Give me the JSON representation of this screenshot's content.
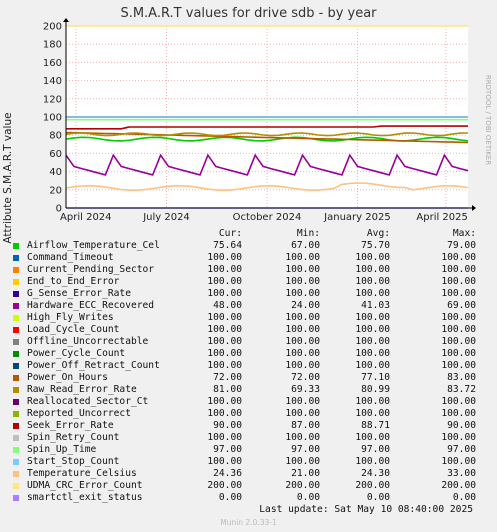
{
  "title": "S.M.A.R.T values for drive sdb - by year",
  "side_label": "RRDTOOL / TOBI OETIKER",
  "ylabel": "Attribute S.M.A.R.T value",
  "columns": {
    "cur": "Cur:",
    "min": "Min:",
    "avg": "Avg:",
    "max": "Max:"
  },
  "last_update": "Last update:  Sat May 10 08:40:00 2025",
  "footer": "Munin 2.0.33-1",
  "chart_data": {
    "type": "line",
    "title": "S.M.A.R.T values for drive sdb - by year",
    "ylabel": "Attribute S.M.A.R.T value",
    "xlabel": "",
    "ylim": [
      0,
      200
    ],
    "yticks": [
      0,
      20,
      40,
      60,
      80,
      100,
      120,
      140,
      160,
      180,
      200
    ],
    "xticks": [
      "April 2024",
      "July 2024",
      "October 2024",
      "January 2025",
      "April 2025"
    ],
    "grid": true,
    "series": [
      {
        "name": "Airflow_Temperature_Cel",
        "color": "#00cc00",
        "cur": "75.64",
        "min": "67.00",
        "avg": "75.70",
        "max": "79.00",
        "level": 75.7
      },
      {
        "name": "Command_Timeout",
        "color": "#0066b3",
        "cur": "100.00",
        "min": "100.00",
        "avg": "100.00",
        "max": "100.00",
        "level": 100
      },
      {
        "name": "Current_Pending_Sector",
        "color": "#ff8000",
        "cur": "100.00",
        "min": "100.00",
        "avg": "100.00",
        "max": "100.00",
        "level": 100
      },
      {
        "name": "End_to_End_Error",
        "color": "#ffcc00",
        "cur": "100.00",
        "min": "100.00",
        "avg": "100.00",
        "max": "100.00",
        "level": 100
      },
      {
        "name": "G_Sense_Error_Rate",
        "color": "#330099",
        "cur": "100.00",
        "min": "100.00",
        "avg": "100.00",
        "max": "100.00",
        "level": 100
      },
      {
        "name": "Hardware_ECC_Recovered",
        "color": "#990099",
        "cur": "48.00",
        "min": "24.00",
        "avg": "41.03",
        "max": "69.00",
        "level": 41.03
      },
      {
        "name": "High_Fly_Writes",
        "color": "#ccff00",
        "cur": "100.00",
        "min": "100.00",
        "avg": "100.00",
        "max": "100.00",
        "level": 100
      },
      {
        "name": "Load_Cycle_Count",
        "color": "#ff0000",
        "cur": "100.00",
        "min": "100.00",
        "avg": "100.00",
        "max": "100.00",
        "level": 100
      },
      {
        "name": "Offline_Uncorrectable",
        "color": "#808080",
        "cur": "100.00",
        "min": "100.00",
        "avg": "100.00",
        "max": "100.00",
        "level": 100
      },
      {
        "name": "Power_Cycle_Count",
        "color": "#008f00",
        "cur": "100.00",
        "min": "100.00",
        "avg": "100.00",
        "max": "100.00",
        "level": 100
      },
      {
        "name": "Power_Off_Retract_Count",
        "color": "#00487d",
        "cur": "100.00",
        "min": "100.00",
        "avg": "100.00",
        "max": "100.00",
        "level": 100
      },
      {
        "name": "Power_On_Hours",
        "color": "#b35a00",
        "cur": "72.00",
        "min": "72.00",
        "avg": "77.10",
        "max": "83.00",
        "level": 77.1
      },
      {
        "name": "Raw_Read_Error_Rate",
        "color": "#b38f00",
        "cur": "81.00",
        "min": "69.33",
        "avg": "80.99",
        "max": "83.72",
        "level": 80.99
      },
      {
        "name": "Reallocated_Sector_Ct",
        "color": "#6b006b",
        "cur": "100.00",
        "min": "100.00",
        "avg": "100.00",
        "max": "100.00",
        "level": 100
      },
      {
        "name": "Reported_Uncorrect",
        "color": "#8fb300",
        "cur": "100.00",
        "min": "100.00",
        "avg": "100.00",
        "max": "100.00",
        "level": 100
      },
      {
        "name": "Seek_Error_Rate",
        "color": "#b30000",
        "cur": "90.00",
        "min": "87.00",
        "avg": "88.71",
        "max": "90.00",
        "level": 88.71
      },
      {
        "name": "Spin_Retry_Count",
        "color": "#bebebe",
        "cur": "100.00",
        "min": "100.00",
        "avg": "100.00",
        "max": "100.00",
        "level": 100
      },
      {
        "name": "Spin_Up_Time",
        "color": "#80ff80",
        "cur": "97.00",
        "min": "97.00",
        "avg": "97.00",
        "max": "97.00",
        "level": 97
      },
      {
        "name": "Start_Stop_Count",
        "color": "#80c9ff",
        "cur": "100.00",
        "min": "100.00",
        "avg": "100.00",
        "max": "100.00",
        "level": 100
      },
      {
        "name": "Temperature_Celsius",
        "color": "#ffc080",
        "cur": "24.36",
        "min": "21.00",
        "avg": "24.30",
        "max": "33.00",
        "level": 24.3
      },
      {
        "name": "UDMA_CRC_Error_Count",
        "color": "#ffe680",
        "cur": "200.00",
        "min": "200.00",
        "avg": "200.00",
        "max": "200.00",
        "level": 200
      },
      {
        "name": "smartctl_exit_status",
        "color": "#aa80ff",
        "cur": "0.00",
        "min": "0.00",
        "avg": "0.00",
        "max": "0.00",
        "level": 0
      }
    ]
  }
}
